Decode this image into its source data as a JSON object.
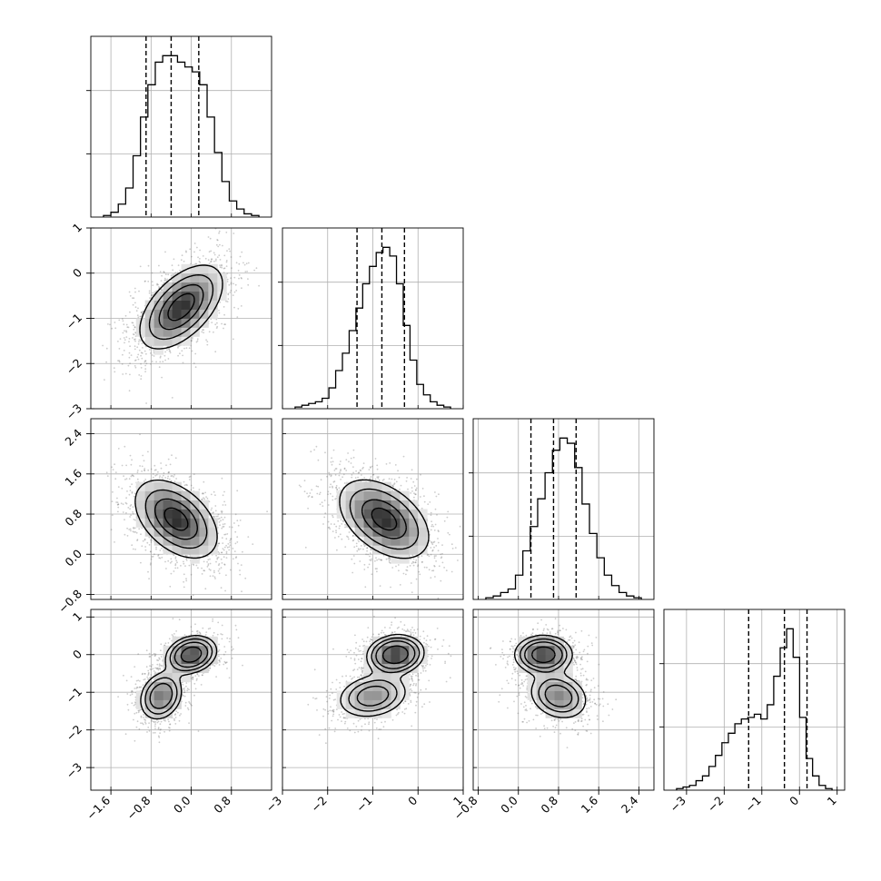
{
  "chart_data": {
    "type": "corner",
    "grid": true,
    "dimensions": [
      {
        "index": 0,
        "range": [
          -2.0,
          1.6
        ],
        "ticks": [
          -1.6,
          -0.8,
          0.0,
          0.8
        ],
        "tick_labels": [
          "−1.6",
          "−0.8",
          "0.0",
          "0.8"
        ],
        "quantiles": [
          -0.9,
          -0.4,
          0.15
        ]
      },
      {
        "index": 1,
        "range": [
          -3.0,
          1.0
        ],
        "ticks": [
          -3,
          -2,
          -1,
          0,
          1
        ],
        "tick_labels": [
          "−3",
          "−2",
          "−1",
          "0",
          "1"
        ],
        "quantiles": [
          -1.35,
          -0.8,
          -0.3
        ]
      },
      {
        "index": 2,
        "range": [
          -0.9,
          2.7
        ],
        "ticks": [
          -0.8,
          0.0,
          0.8,
          1.6,
          2.4
        ],
        "tick_labels": [
          "−0.8",
          "0.0",
          "0.8",
          "1.6",
          "2.4"
        ],
        "quantiles": [
          0.25,
          0.7,
          1.15
        ]
      },
      {
        "index": 3,
        "range": [
          -3.6,
          1.2
        ],
        "ticks": [
          -3,
          -2,
          -1,
          0,
          1
        ],
        "tick_labels": [
          "−3",
          "−2",
          "−1",
          "0",
          "1"
        ],
        "quantiles": [
          -1.35,
          -0.4,
          0.2
        ]
      }
    ],
    "histograms": [
      {
        "dim": 0,
        "counts": [
          1,
          3,
          8,
          18,
          38,
          62,
          82,
          96,
          100,
          100,
          96,
          93,
          90,
          82,
          62,
          40,
          22,
          10,
          5,
          2,
          1
        ]
      },
      {
        "dim": 1,
        "counts": [
          1,
          2,
          3,
          4,
          6,
          12,
          22,
          32,
          45,
          58,
          72,
          82,
          90,
          93,
          88,
          72,
          48,
          28,
          14,
          8,
          4,
          2,
          1
        ]
      },
      {
        "dim": 2,
        "counts": [
          1,
          2,
          4,
          6,
          14,
          28,
          42,
          58,
          73,
          86,
          93,
          90,
          76,
          55,
          38,
          24,
          14,
          8,
          4,
          2,
          1
        ]
      },
      {
        "dim": 3,
        "counts": [
          1,
          2,
          3,
          6,
          9,
          15,
          22,
          30,
          36,
          42,
          45,
          46,
          48,
          45,
          54,
          72,
          90,
          102,
          84,
          46,
          20,
          9,
          3,
          1
        ]
      }
    ],
    "pairs": [
      {
        "x": 1,
        "y": 0,
        "components": [
          {
            "mean": [
              -0.2,
              -0.75
            ],
            "sd": [
              0.4,
              0.45
            ],
            "rho": 0.55,
            "weight": 1.0
          }
        ]
      },
      {
        "x": 2,
        "y": 0,
        "components": [
          {
            "mean": [
              -0.3,
              0.7
            ],
            "sd": [
              0.4,
              0.38
            ],
            "rho": -0.45,
            "weight": 1.0
          }
        ]
      },
      {
        "x": 2,
        "y": 1,
        "components": [
          {
            "mean": [
              -0.75,
              0.7
            ],
            "sd": [
              0.48,
              0.38
            ],
            "rho": -0.45,
            "weight": 1.0
          }
        ]
      },
      {
        "x": 3,
        "y": 0,
        "components": [
          {
            "mean": [
              0.0,
              0.0
            ],
            "sd": [
              0.25,
              0.25
            ],
            "rho": 0.2,
            "weight": 0.55
          },
          {
            "mean": [
              -0.6,
              -1.1
            ],
            "sd": [
              0.22,
              0.33
            ],
            "rho": 0.2,
            "weight": 0.45
          }
        ]
      },
      {
        "x": 3,
        "y": 1,
        "components": [
          {
            "mean": [
              -0.5,
              0.0
            ],
            "sd": [
              0.3,
              0.25
            ],
            "rho": 0.1,
            "weight": 0.55
          },
          {
            "mean": [
              -1.0,
              -1.1
            ],
            "sd": [
              0.4,
              0.3
            ],
            "rho": 0.2,
            "weight": 0.45
          }
        ]
      },
      {
        "x": 3,
        "y": 2,
        "components": [
          {
            "mean": [
              0.5,
              0.0
            ],
            "sd": [
              0.28,
              0.25
            ],
            "rho": 0.0,
            "weight": 0.55
          },
          {
            "mean": [
              0.8,
              -1.1
            ],
            "sd": [
              0.3,
              0.32
            ],
            "rho": -0.2,
            "weight": 0.45
          }
        ]
      }
    ],
    "contour_levels_sigma": [
      0.5,
      1.0,
      1.5,
      2.0
    ],
    "colors": {
      "line": "#000000",
      "density_max": "#222222",
      "points": "#6e6e6e",
      "grid": "#b0b0b0"
    }
  }
}
